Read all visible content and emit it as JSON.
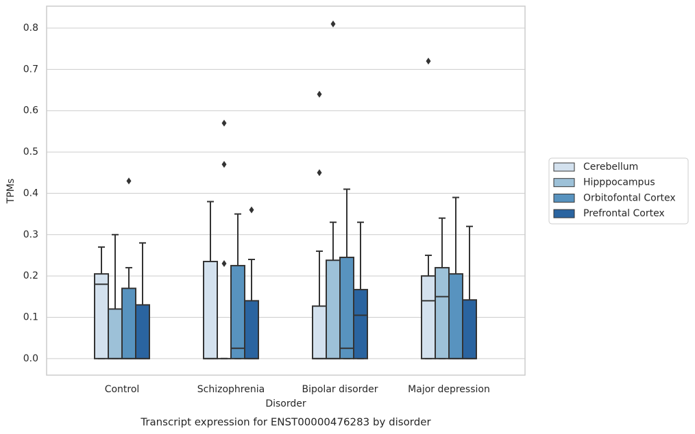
{
  "chart_data": {
    "type": "box",
    "title": "Transcript expression for ENST00000476283 by disorder",
    "x_label": "Disorder",
    "y_label": "TPMs",
    "categories": [
      "Control",
      "Schizophrenia",
      "Bipolar disorder",
      "Major depression"
    ],
    "ylim": [
      -0.04,
      0.853
    ],
    "yticks": [
      {
        "value": 0,
        "label": "0.0"
      },
      0.1,
      0.2,
      0.3,
      0.4,
      0.5,
      0.6,
      0.7,
      0.8
    ],
    "grid": true,
    "legend_position": "right",
    "series": [
      {
        "name": "Cerebellum",
        "color": "#d3e1ee",
        "boxes": [
          {
            "min": 0,
            "q1": 0,
            "median": 0.18,
            "q3": 0.205,
            "max": 0.27,
            "outliers": []
          },
          {
            "min": 0,
            "q1": 0,
            "median": 0,
            "q3": 0.235,
            "max": 0.38,
            "outliers": []
          },
          {
            "min": 0,
            "q1": 0,
            "median": 0,
            "q3": 0.127,
            "max": 0.26,
            "outliers": [
              0.45,
              0.64
            ]
          },
          {
            "min": 0,
            "q1": 0,
            "median": 0.14,
            "q3": 0.2,
            "max": 0.25,
            "outliers": [
              0.72
            ]
          }
        ]
      },
      {
        "name": "Hipppocampus",
        "color": "#9dc1d8",
        "boxes": [
          {
            "min": 0,
            "q1": 0,
            "median": 0,
            "q3": 0.12,
            "max": 0.3,
            "outliers": []
          },
          {
            "min": 0,
            "q1": 0,
            "median": 0,
            "q3": 0,
            "max": 0,
            "outliers": [
              0.23,
              0.47,
              0.57
            ]
          },
          {
            "min": 0,
            "q1": 0,
            "median": 0,
            "q3": 0.238,
            "max": 0.33,
            "outliers": [
              0.81
            ]
          },
          {
            "min": 0,
            "q1": 0,
            "median": 0.15,
            "q3": 0.22,
            "max": 0.34,
            "outliers": []
          }
        ]
      },
      {
        "name": "Orbitofontal Cortex",
        "color": "#5893bf",
        "boxes": [
          {
            "min": 0,
            "q1": 0,
            "median": 0,
            "q3": 0.17,
            "max": 0.22,
            "outliers": [
              0.43
            ]
          },
          {
            "min": 0,
            "q1": 0,
            "median": 0.025,
            "q3": 0.225,
            "max": 0.35,
            "outliers": []
          },
          {
            "min": 0,
            "q1": 0,
            "median": 0.025,
            "q3": 0.245,
            "max": 0.41,
            "outliers": []
          },
          {
            "min": 0,
            "q1": 0,
            "median": 0,
            "q3": 0.205,
            "max": 0.39,
            "outliers": []
          }
        ]
      },
      {
        "name": "Prefrontal Cortex",
        "color": "#2a64a0",
        "boxes": [
          {
            "min": 0,
            "q1": 0,
            "median": 0,
            "q3": 0.13,
            "max": 0.28,
            "outliers": []
          },
          {
            "min": 0,
            "q1": 0,
            "median": 0,
            "q3": 0.14,
            "max": 0.24,
            "outliers": [
              0.36
            ]
          },
          {
            "min": 0,
            "q1": 0,
            "median": 0.105,
            "q3": 0.167,
            "max": 0.33,
            "outliers": []
          },
          {
            "min": 0,
            "q1": 0,
            "median": 0,
            "q3": 0.142,
            "max": 0.32,
            "outliers": []
          }
        ]
      }
    ]
  }
}
